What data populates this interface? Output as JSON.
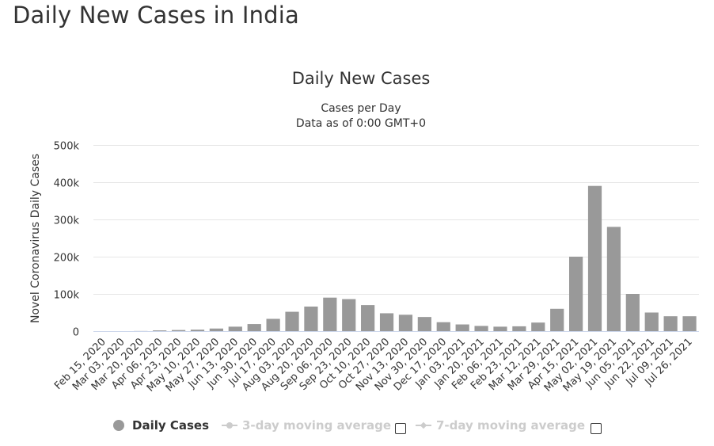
{
  "page": {
    "title": "Daily New Cases in India"
  },
  "chart_data": {
    "type": "bar",
    "title": "Daily New Cases",
    "subtitle_lines": [
      "Cases per Day",
      "Data as of 0:00 GMT+0"
    ],
    "xlabel": "",
    "ylabel": "Novel Coronavirus Daily Cases",
    "ylim": [
      0,
      500000
    ],
    "yticks": [
      0,
      100000,
      200000,
      300000,
      400000,
      500000
    ],
    "ytick_labels": [
      "0",
      "100k",
      "200k",
      "300k",
      "400k",
      "500k"
    ],
    "grid": true,
    "bar_color": "#999999",
    "categories": [
      "Feb 15, 2020",
      "Mar 03, 2020",
      "Mar 20, 2020",
      "Apr 06, 2020",
      "Apr 23, 2020",
      "May 10, 2020",
      "May 27, 2020",
      "Jun 13, 2020",
      "Jun 30, 2020",
      "Jul 17, 2020",
      "Aug 03, 2020",
      "Aug 20, 2020",
      "Sep 06, 2020",
      "Sep 23, 2020",
      "Oct 10, 2020",
      "Oct 27, 2020",
      "Nov 13, 2020",
      "Nov 30, 2020",
      "Dec 17, 2020",
      "Jan 03, 2021",
      "Jan 20, 2021",
      "Feb 06, 2021",
      "Feb 23, 2021",
      "Mar 12, 2021",
      "Mar 29, 2021",
      "Apr 15, 2021",
      "May 02, 2021",
      "May 19, 2021",
      "Jun 05, 2021",
      "Jun 22, 2021",
      "Jul 09, 2021",
      "Jul 26, 2021"
    ],
    "series": [
      {
        "name": "Daily Cases",
        "values": [
          0,
          0,
          300,
          2000,
          3000,
          4000,
          7000,
          12000,
          19000,
          33000,
          52000,
          66000,
          90000,
          86000,
          70000,
          48000,
          44000,
          38000,
          24000,
          18000,
          14000,
          12000,
          13000,
          23000,
          60000,
          200000,
          390000,
          280000,
          100000,
          50000,
          40000,
          40000
        ]
      }
    ],
    "legend": {
      "position": "bottom",
      "items": [
        {
          "label": "Daily Cases",
          "active": true
        },
        {
          "label": "3-day moving average",
          "active": false,
          "checked": false
        },
        {
          "label": "7-day moving average",
          "active": false,
          "checked": false
        }
      ]
    }
  }
}
